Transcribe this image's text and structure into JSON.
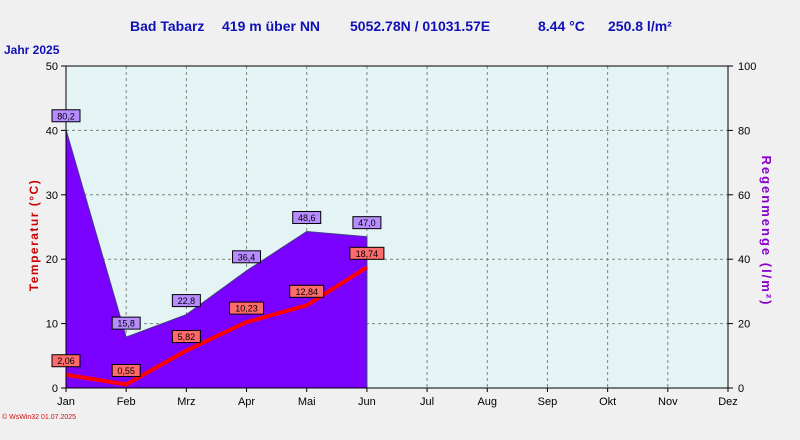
{
  "header": {
    "station": "Bad Tabarz",
    "elevation": "419 m über NN",
    "coords": "5052.78N / 01031.57E",
    "avg_temp": "8.44 °C",
    "rain_total": "250.8 l/m²"
  },
  "year_label": "Jahr  2025",
  "footer_text": "© WsWin32  01.07.2025",
  "colors": {
    "background": "#f0f0f0",
    "plot_bg": "#e4f4f4",
    "rain_fill": "#7a00ff",
    "temp_line": "#ff0000",
    "header_text": "#1010b8",
    "rain_axis_title": "#8800cc",
    "temp_axis_title": "#cc0000"
  },
  "chart_data": {
    "type": "area",
    "x_categories": [
      "Jan",
      "Feb",
      "Mrz",
      "Apr",
      "Mai",
      "Jun",
      "Jul",
      "Aug",
      "Sep",
      "Okt",
      "Nov",
      "Dez"
    ],
    "left_axis": {
      "label": "Temperatur (°C)",
      "min": 0,
      "max": 50,
      "ticks": [
        0,
        10,
        20,
        30,
        40,
        50
      ]
    },
    "right_axis": {
      "label": "Regenmenge (l/m²)",
      "min": 0,
      "max": 100,
      "ticks": [
        0,
        20,
        40,
        60,
        80,
        100
      ]
    },
    "series": [
      {
        "name": "Regenmenge",
        "type": "area",
        "axis": "right",
        "values": [
          80.2,
          15.8,
          22.8,
          36.4,
          48.6,
          47.0
        ],
        "labels": [
          "80,2",
          "15,8",
          "22,8",
          "36,4",
          "48,6",
          "47,0"
        ]
      },
      {
        "name": "Temperatur",
        "type": "line",
        "axis": "left",
        "values": [
          2.06,
          0.55,
          5.82,
          10.23,
          12.84,
          18.74
        ],
        "labels": [
          "2,06",
          "0,55",
          "5,82",
          "10,23",
          "12,84",
          "18,74"
        ]
      }
    ],
    "grid": true
  }
}
